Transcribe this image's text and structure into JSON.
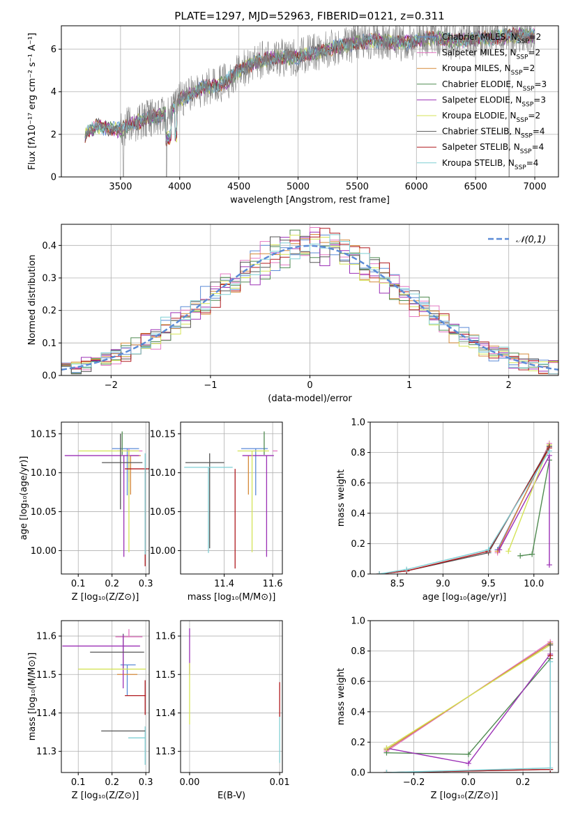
{
  "figure": {
    "title": "PLATE=1297, MJD=52963, FIBERID=0121, z=0.311"
  },
  "colors": {
    "Chabrier MILES": "#5b8bd6",
    "Salpeter MILES": "#e377c2",
    "Kroupa MILES": "#d58a3a",
    "Chabrier ELODIE": "#4f8a50",
    "Salpeter ELODIE": "#9b2fb5",
    "Kroupa ELODIE": "#d4e356",
    "Chabrier STELIB": "#555555",
    "Salpeter STELIB": "#b0191e",
    "Kroupa STELIB": "#7fcfd4"
  },
  "chart_data": [
    {
      "id": "spectrum",
      "type": "line",
      "title": "PLATE=1297, MJD=52963, FIBERID=0121, z=0.311",
      "xlabel": "wavelength [Angstrom, rest frame]",
      "ylabel": "Flux [fλ10⁻¹⁷ erg cm⁻² s⁻¹ A⁻¹]",
      "xlim": [
        3000,
        7200
      ],
      "ylim": [
        0,
        7.1
      ],
      "xticks": [
        3500,
        4000,
        4500,
        5000,
        5500,
        6000,
        6500,
        7000
      ],
      "yticks": [
        0,
        2,
        4,
        6
      ],
      "legend_position": "top-right",
      "legend": [
        "Chabrier MILES, N_SSP=2",
        "Salpeter MILES, N_SSP=2",
        "Kroupa MILES, N_SSP=2",
        "Chabrier ELODIE, N_SSP=3",
        "Salpeter ELODIE, N_SSP=3",
        "Kroupa ELODIE, N_SSP=2",
        "Chabrier STELIB, N_SSP=4",
        "Salpeter STELIB, N_SSP=4",
        "Kroupa STELIB, N_SSP=4"
      ],
      "continuum": {
        "x": [
          3200,
          3300,
          3400,
          3500,
          3600,
          3700,
          3800,
          3900,
          4000,
          4100,
          4200,
          4300,
          4400,
          4500,
          4600,
          4700,
          4800,
          4900,
          5000,
          5100,
          5200,
          5300,
          5400,
          5500,
          5600,
          5700,
          5800,
          5900,
          6000,
          6100,
          6200,
          6300,
          6400,
          6500,
          6600,
          6700,
          6800,
          6900,
          7000
        ],
        "y": [
          2.0,
          2.4,
          2.3,
          2.2,
          2.5,
          2.7,
          2.8,
          3.0,
          3.6,
          3.9,
          4.2,
          4.3,
          4.5,
          5.0,
          5.3,
          5.5,
          5.6,
          5.6,
          5.6,
          5.8,
          5.9,
          6.1,
          6.2,
          6.3,
          6.4,
          6.4,
          6.3,
          6.3,
          6.4,
          6.5,
          6.5,
          6.4,
          6.4,
          6.5,
          6.5,
          6.6,
          6.6,
          6.7,
          6.6
        ]
      },
      "model_noise_amplitude": 0.25,
      "data_noise_amplitude": 0.9
    },
    {
      "id": "residuals",
      "type": "histogram",
      "xlabel": "(data-model)/error",
      "ylabel": "Normed distribution",
      "xlim": [
        -2.5,
        2.5
      ],
      "ylim": [
        0,
        0.465
      ],
      "xticks": [
        -2,
        -1,
        0,
        1,
        2
      ],
      "yticks": [
        0,
        0.1,
        0.2,
        0.3,
        0.4
      ],
      "legend_position": "top-right",
      "reference_curve": {
        "label": "𝒩(0,1)",
        "mean": 0,
        "sigma": 1,
        "color": "#5b8bd6"
      },
      "bin_width": 0.1,
      "scatter_amplitude": 0.05
    },
    {
      "id": "age-vs-Z",
      "type": "errorbar",
      "xlabel": "Z [log₁₀(Z/Z⊙)]",
      "ylabel": "age  [log₁₀(age/yr)]",
      "xlim": [
        0.05,
        0.31
      ],
      "ylim": [
        9.97,
        10.165
      ],
      "xticks": [
        0.1,
        0.2,
        0.3
      ],
      "yticks": [
        10.0,
        10.05,
        10.1,
        10.15
      ],
      "points": [
        {
          "model": "Chabrier MILES",
          "x": 0.245,
          "y": 10.131,
          "xerr": [
            0.045,
            0.035
          ],
          "yerr": [
            0.06,
            0.0
          ]
        },
        {
          "model": "Salpeter MILES",
          "x": 0.25,
          "y": 10.128,
          "xerr": [
            0.035,
            0.04
          ],
          "yerr": [
            0.04,
            0.003
          ]
        },
        {
          "model": "Kroupa MILES",
          "x": 0.255,
          "y": 10.122,
          "xerr": [
            0.0,
            0.03
          ],
          "yerr": [
            0.05,
            0.0
          ]
        },
        {
          "model": "Chabrier ELODIE",
          "x": 0.23,
          "y": 10.123,
          "xerr": [
            0.0,
            0.0
          ],
          "yerr": [
            0.0,
            0.03
          ]
        },
        {
          "model": "Salpeter ELODIE",
          "x": 0.235,
          "y": 10.122,
          "xerr": [
            0.175,
            0.045
          ],
          "yerr": [
            0.13,
            0.0
          ]
        },
        {
          "model": "Kroupa ELODIE",
          "x": 0.25,
          "y": 10.128,
          "xerr": [
            0.15,
            0.03
          ],
          "yerr": [
            0.13,
            0.0
          ]
        },
        {
          "model": "Chabrier STELIB",
          "x": 0.225,
          "y": 10.113,
          "xerr": [
            0.055,
            0.065
          ],
          "yerr": [
            0.06,
            0.037
          ]
        },
        {
          "model": "Salpeter STELIB",
          "x": 0.298,
          "y": 10.105,
          "xerr": [
            0.06,
            0.012
          ],
          "yerr": [
            0.125,
            0.0
          ]
        },
        {
          "model": "Kroupa STELIB",
          "x": 0.298,
          "y": 10.105,
          "xerr": [
            0.0,
            0.0
          ],
          "yerr": [
            0.11,
            0.02
          ]
        }
      ]
    },
    {
      "id": "age-vs-mass",
      "type": "errorbar",
      "xlabel": "mass [log₁₀(M/M⊙)]",
      "ylabel": "",
      "xlim": [
        11.22,
        11.64
      ],
      "ylim": [
        9.97,
        10.165
      ],
      "xticks": [
        11.4,
        11.6
      ],
      "yticks": [
        10.0,
        10.05,
        10.1,
        10.15
      ],
      "points": [
        {
          "model": "Chabrier MILES",
          "x": 11.53,
          "y": 10.131,
          "xerr": [
            0.06,
            0.05
          ],
          "yerr": [
            0.06,
            0.0
          ]
        },
        {
          "model": "Salpeter MILES",
          "x": 11.6,
          "y": 10.128,
          "xerr": [
            0.0,
            0.02
          ],
          "yerr": [
            0.0,
            0.0
          ]
        },
        {
          "model": "Kroupa MILES",
          "x": 11.5,
          "y": 10.122,
          "xerr": [
            0.0,
            0.0
          ],
          "yerr": [
            0.05,
            0.0
          ]
        },
        {
          "model": "Chabrier ELODIE",
          "x": 11.565,
          "y": 10.123,
          "xerr": [
            0.0,
            0.0
          ],
          "yerr": [
            0.0,
            0.03
          ]
        },
        {
          "model": "Salpeter ELODIE",
          "x": 11.575,
          "y": 10.122,
          "xerr": [
            0.1,
            0.03
          ],
          "yerr": [
            0.13,
            0.0
          ]
        },
        {
          "model": "Kroupa ELODIE",
          "x": 11.515,
          "y": 10.128,
          "xerr": [
            0.06,
            0.07
          ],
          "yerr": [
            0.13,
            0.0
          ]
        },
        {
          "model": "Chabrier STELIB",
          "x": 11.34,
          "y": 10.113,
          "xerr": [
            0.1,
            0.06
          ],
          "yerr": [
            0.11,
            0.012
          ]
        },
        {
          "model": "Salpeter STELIB",
          "x": 11.445,
          "y": 10.105,
          "xerr": [
            0.0,
            0.0
          ],
          "yerr": [
            0.128,
            0.0
          ]
        },
        {
          "model": "Kroupa STELIB",
          "x": 11.335,
          "y": 10.107,
          "xerr": [
            0.1,
            0.1
          ],
          "yerr": [
            0.11,
            0.0
          ]
        }
      ]
    },
    {
      "id": "weight-vs-age",
      "type": "line",
      "xlabel": "age  [log₁₀(age/yr)]",
      "ylabel": "mass weight",
      "xlim": [
        8.2,
        10.27
      ],
      "ylim": [
        0,
        1.0
      ],
      "xticks": [
        8.5,
        9.0,
        9.5,
        10.0
      ],
      "yticks": [
        0.0,
        0.2,
        0.4,
        0.6,
        0.8,
        1.0
      ],
      "series": [
        {
          "model": "Chabrier MILES",
          "x": [
            9.6,
            10.17
          ],
          "y": [
            0.16,
            0.84
          ]
        },
        {
          "model": "Salpeter MILES",
          "x": [
            9.6,
            10.17
          ],
          "y": [
            0.14,
            0.86
          ]
        },
        {
          "model": "Kroupa MILES",
          "x": [
            9.6,
            10.17
          ],
          "y": [
            0.15,
            0.85
          ]
        },
        {
          "model": "Chabrier ELODIE",
          "x": [
            9.85,
            9.98,
            10.17
          ],
          "y": [
            0.12,
            0.13,
            0.75
          ]
        },
        {
          "model": "Salpeter ELODIE",
          "x": [
            9.62,
            10.17,
            10.17
          ],
          "y": [
            0.16,
            0.78,
            0.06
          ]
        },
        {
          "model": "Kroupa ELODIE",
          "x": [
            9.72,
            10.17
          ],
          "y": [
            0.15,
            0.85
          ]
        },
        {
          "model": "Chabrier STELIB",
          "x": [
            8.3,
            8.6,
            9.5,
            10.17
          ],
          "y": [
            0.0,
            0.02,
            0.14,
            0.84
          ]
        },
        {
          "model": "Salpeter STELIB",
          "x": [
            8.3,
            8.6,
            9.5,
            10.17
          ],
          "y": [
            0.0,
            0.02,
            0.15,
            0.83
          ]
        },
        {
          "model": "Kroupa STELIB",
          "x": [
            8.3,
            8.6,
            9.5,
            10.17
          ],
          "y": [
            0.0,
            0.03,
            0.16,
            0.81
          ]
        }
      ]
    },
    {
      "id": "mass-vs-Z",
      "type": "errorbar",
      "xlabel": "Z [log₁₀(Z/Z⊙)]",
      "ylabel": "mass [log₁₀(M/M⊙)]",
      "xlim": [
        0.05,
        0.31
      ],
      "ylim": [
        11.245,
        11.64
      ],
      "xticks": [
        0.1,
        0.2,
        0.3
      ],
      "yticks": [
        11.3,
        11.4,
        11.5,
        11.6
      ],
      "points": [
        {
          "model": "Chabrier MILES",
          "x": 0.245,
          "y": 11.525,
          "xerr": [
            0.02,
            0.025
          ],
          "yerr": [
            0.08,
            0.0
          ]
        },
        {
          "model": "Salpeter MILES",
          "x": 0.25,
          "y": 11.598,
          "xerr": [
            0.04,
            0.04
          ],
          "yerr": [
            0.0,
            0.02
          ]
        },
        {
          "model": "Kroupa MILES",
          "x": 0.245,
          "y": 11.5,
          "xerr": [
            0.03,
            0.03
          ],
          "yerr": [
            0.0,
            0.0
          ]
        },
        {
          "model": "Chabrier ELODIE",
          "x": 0.233,
          "y": 11.556,
          "xerr": [
            0.0,
            0.0
          ],
          "yerr": [
            0.04,
            0.05
          ]
        },
        {
          "model": "Salpeter ELODIE",
          "x": 0.233,
          "y": 11.574,
          "xerr": [
            0.18,
            0.05
          ],
          "yerr": [
            0.11,
            0.03
          ]
        },
        {
          "model": "Kroupa ELODIE",
          "x": 0.23,
          "y": 11.514,
          "xerr": [
            0.13,
            0.07
          ],
          "yerr": [
            0.0,
            0.0
          ]
        },
        {
          "model": "Chabrier STELIB",
          "x": 0.225,
          "y": 11.558,
          "xerr": [
            0.09,
            0.07
          ],
          "yerr": [
            0.0,
            0.0
          ]
        },
        {
          "model": "Salpeter STELIB",
          "x": 0.298,
          "y": 11.445,
          "xerr": [
            0.06,
            0.002
          ],
          "yerr": [
            0.05,
            0.04
          ]
        },
        {
          "model": "Kroupa STELIB",
          "x": 0.298,
          "y": 11.335,
          "xerr": [
            0.05,
            0.0
          ],
          "yerr": [
            0.07,
            0.03
          ]
        },
        {
          "model": "Chabrier STELIB",
          "x": 0.298,
          "y": 11.353,
          "xerr": [
            0.13,
            0.0
          ],
          "yerr": [
            0.0,
            0.0
          ]
        }
      ]
    },
    {
      "id": "mass-vs-EBV",
      "type": "errorbar",
      "xlabel": "E(B-V)",
      "ylabel": "",
      "xlim": [
        -0.001,
        0.0103
      ],
      "ylim": [
        11.245,
        11.64
      ],
      "xticks": [
        0.0,
        0.01
      ],
      "yticks": [
        11.3,
        11.4,
        11.5,
        11.6
      ],
      "points": [
        {
          "model": "Salpeter ELODIE",
          "x": 0.0,
          "y": 11.55,
          "xerr": [
            0.0,
            0.0
          ],
          "yerr": [
            0.05,
            0.07
          ]
        },
        {
          "model": "Kroupa ELODIE",
          "x": 0.0,
          "y": 11.46,
          "xerr": [
            0.0,
            0.0
          ],
          "yerr": [
            0.09,
            0.07
          ]
        },
        {
          "model": "Salpeter STELIB",
          "x": 0.01,
          "y": 11.44,
          "xerr": [
            0.0,
            0.0
          ],
          "yerr": [
            0.05,
            0.04
          ]
        },
        {
          "model": "Kroupa STELIB",
          "x": 0.01,
          "y": 11.33,
          "xerr": [
            0.0,
            0.0
          ],
          "yerr": [
            0.06,
            0.06
          ]
        }
      ]
    },
    {
      "id": "weight-vs-Z",
      "type": "line",
      "xlabel": "Z [log₁₀(Z/Z⊙)]",
      "ylabel": "mass weight",
      "xlim": [
        -0.36,
        0.33
      ],
      "ylim": [
        0,
        1.0
      ],
      "xticks": [
        -0.2,
        0.0,
        0.2
      ],
      "yticks": [
        0.0,
        0.2,
        0.4,
        0.6,
        0.8,
        1.0
      ],
      "series": [
        {
          "model": "Chabrier MILES",
          "x": [
            -0.3,
            0.3
          ],
          "y": [
            0.15,
            0.85
          ]
        },
        {
          "model": "Salpeter MILES",
          "x": [
            -0.3,
            0.3
          ],
          "y": [
            0.14,
            0.86
          ]
        },
        {
          "model": "Kroupa MILES",
          "x": [
            -0.3,
            0.3
          ],
          "y": [
            0.15,
            0.85
          ]
        },
        {
          "model": "Chabrier ELODIE",
          "x": [
            -0.3,
            0.0,
            0.3
          ],
          "y": [
            0.13,
            0.12,
            0.75
          ]
        },
        {
          "model": "Salpeter ELODIE",
          "x": [
            -0.3,
            0.0,
            0.3
          ],
          "y": [
            0.16,
            0.06,
            0.78
          ]
        },
        {
          "model": "Kroupa ELODIE",
          "x": [
            -0.3,
            0.3
          ],
          "y": [
            0.16,
            0.84
          ]
        },
        {
          "model": "Chabrier STELIB",
          "x": [
            -0.3,
            0.3,
            0.3
          ],
          "y": [
            0.0,
            0.02,
            0.84
          ]
        },
        {
          "model": "Salpeter STELIB",
          "x": [
            -0.3,
            0.3,
            0.3
          ],
          "y": [
            0.0,
            0.02,
            0.77
          ]
        },
        {
          "model": "Kroupa STELIB",
          "x": [
            -0.3,
            0.3,
            0.3
          ],
          "y": [
            0.0,
            0.03,
            0.73
          ]
        }
      ]
    }
  ]
}
